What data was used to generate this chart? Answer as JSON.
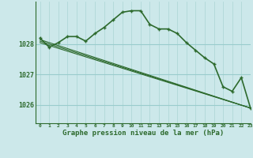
{
  "title": "Graphe pression niveau de la mer (hPa)",
  "background_color": "#cce8ea",
  "grid_color_v": "#aad4d4",
  "grid_color_h": "#99cccc",
  "line_color": "#2d6a2d",
  "xlim": [
    -0.5,
    23
  ],
  "ylim": [
    1025.4,
    1029.4
  ],
  "yticks": [
    1026,
    1027,
    1028
  ],
  "xticks": [
    0,
    1,
    2,
    3,
    4,
    5,
    6,
    7,
    8,
    9,
    10,
    11,
    12,
    13,
    14,
    15,
    16,
    17,
    18,
    19,
    20,
    21,
    22,
    23
  ],
  "series": [
    {
      "x": [
        0,
        1,
        2,
        3,
        4,
        5,
        6,
        7,
        8,
        9,
        10,
        11,
        12,
        13,
        14,
        15,
        16,
        17,
        18,
        19,
        20,
        21,
        22,
        23
      ],
      "y": [
        1028.2,
        1027.9,
        1028.05,
        1028.25,
        1028.25,
        1028.1,
        1028.35,
        1028.55,
        1028.8,
        1029.05,
        1029.1,
        1029.1,
        1028.65,
        1028.5,
        1028.5,
        1028.35,
        1028.05,
        1027.8,
        1027.55,
        1027.35,
        1026.6,
        1026.45,
        1026.9,
        1025.9
      ],
      "has_markers": true,
      "linewidth": 1.2
    },
    {
      "x": [
        0,
        23
      ],
      "y": [
        1028.1,
        1025.9
      ],
      "has_markers": false,
      "linewidth": 0.8
    },
    {
      "x": [
        0,
        23
      ],
      "y": [
        1028.15,
        1025.9
      ],
      "has_markers": false,
      "linewidth": 0.8
    },
    {
      "x": [
        0,
        23
      ],
      "y": [
        1028.05,
        1025.9
      ],
      "has_markers": false,
      "linewidth": 0.8
    }
  ]
}
